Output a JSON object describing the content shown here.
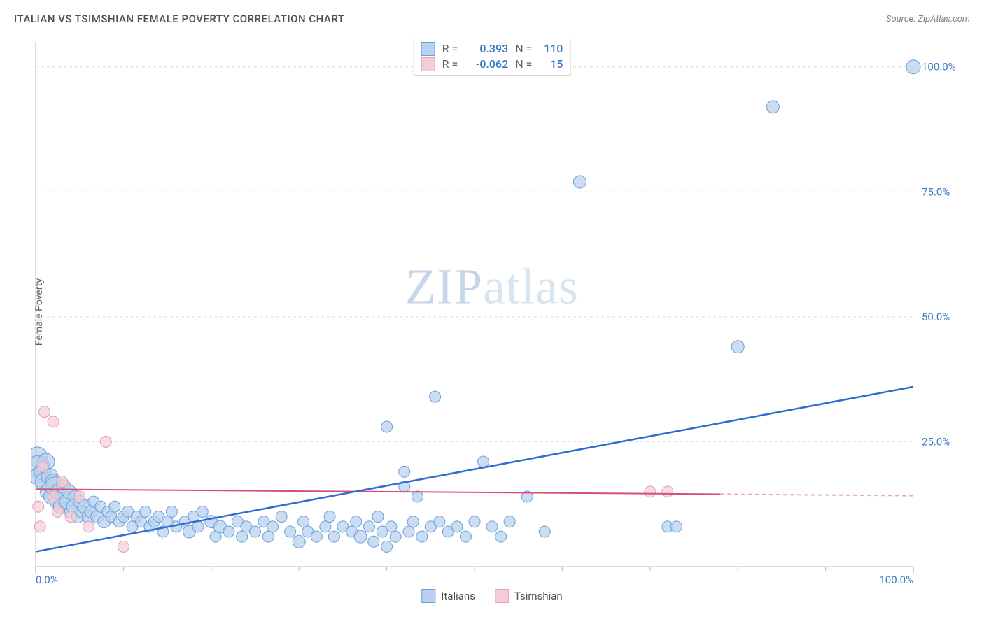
{
  "title": "ITALIAN VS TSIMSHIAN FEMALE POVERTY CORRELATION CHART",
  "source": "Source: ZipAtlas.com",
  "ylabel": "Female Poverty",
  "watermark_bold": "ZIP",
  "watermark_light": "atlas",
  "chart": {
    "type": "scatter",
    "background_color": "#ffffff",
    "grid_color": "#dddddd",
    "axis_color": "#bbbbbb",
    "tick_color": "#bbbbbb",
    "xlim": [
      0,
      100
    ],
    "ylim": [
      0,
      105
    ],
    "x_ticks_major": [
      0,
      100
    ],
    "x_ticks_minor": [
      10,
      20,
      30,
      40,
      50,
      60,
      70,
      80,
      90
    ],
    "y_ticks_major": [
      25,
      50,
      75,
      100
    ],
    "y_tick_labels": [
      "25.0%",
      "50.0%",
      "75.0%",
      "100.0%"
    ],
    "x_tick_labels": [
      "0.0%",
      "100.0%"
    ],
    "tick_label_color": "#3b78c4",
    "tick_label_fontsize": 15,
    "series": [
      {
        "name": "Italians",
        "fill": "#b8d1ee",
        "stroke": "#6a9fd8",
        "line_color": "#2f6bd0",
        "line_width": 2.5,
        "line_dash_end": false,
        "r": 0.393,
        "n": 110,
        "trend": {
          "x1": 0,
          "y1": 3,
          "x2": 100,
          "y2": 36
        },
        "points": [
          {
            "x": 0.2,
            "y": 22,
            "r": 14
          },
          {
            "x": 0.3,
            "y": 20,
            "r": 16
          },
          {
            "x": 0.5,
            "y": 18,
            "r": 14
          },
          {
            "x": 0.8,
            "y": 19,
            "r": 12
          },
          {
            "x": 1.0,
            "y": 17,
            "r": 13
          },
          {
            "x": 1.2,
            "y": 21,
            "r": 12
          },
          {
            "x": 1.4,
            "y": 15,
            "r": 11
          },
          {
            "x": 1.6,
            "y": 18,
            "r": 12
          },
          {
            "x": 1.8,
            "y": 14,
            "r": 11
          },
          {
            "x": 2.0,
            "y": 17,
            "r": 11
          },
          {
            "x": 2.2,
            "y": 16,
            "r": 14
          },
          {
            "x": 2.4,
            "y": 13,
            "r": 10
          },
          {
            "x": 2.6,
            "y": 15,
            "r": 11
          },
          {
            "x": 2.8,
            "y": 12,
            "r": 10
          },
          {
            "x": 3.0,
            "y": 14,
            "r": 10
          },
          {
            "x": 3.2,
            "y": 16,
            "r": 10
          },
          {
            "x": 3.5,
            "y": 13,
            "r": 10
          },
          {
            "x": 3.8,
            "y": 15,
            "r": 10
          },
          {
            "x": 4.0,
            "y": 11,
            "r": 9
          },
          {
            "x": 4.3,
            "y": 12,
            "r": 10
          },
          {
            "x": 4.5,
            "y": 14,
            "r": 9
          },
          {
            "x": 4.8,
            "y": 10,
            "r": 9
          },
          {
            "x": 5.0,
            "y": 13,
            "r": 9
          },
          {
            "x": 5.3,
            "y": 11,
            "r": 9
          },
          {
            "x": 5.6,
            "y": 12,
            "r": 10
          },
          {
            "x": 6.0,
            "y": 10,
            "r": 9
          },
          {
            "x": 6.3,
            "y": 11,
            "r": 9
          },
          {
            "x": 6.6,
            "y": 13,
            "r": 8
          },
          {
            "x": 7.0,
            "y": 10,
            "r": 9
          },
          {
            "x": 7.4,
            "y": 12,
            "r": 8
          },
          {
            "x": 7.8,
            "y": 9,
            "r": 9
          },
          {
            "x": 8.2,
            "y": 11,
            "r": 8
          },
          {
            "x": 8.6,
            "y": 10,
            "r": 8
          },
          {
            "x": 9.0,
            "y": 12,
            "r": 8
          },
          {
            "x": 9.5,
            "y": 9,
            "r": 8
          },
          {
            "x": 10,
            "y": 10,
            "r": 8
          },
          {
            "x": 10.5,
            "y": 11,
            "r": 8
          },
          {
            "x": 11,
            "y": 8,
            "r": 8
          },
          {
            "x": 11.5,
            "y": 10,
            "r": 8
          },
          {
            "x": 12,
            "y": 9,
            "r": 8
          },
          {
            "x": 12.5,
            "y": 11,
            "r": 8
          },
          {
            "x": 13,
            "y": 8,
            "r": 8
          },
          {
            "x": 13.5,
            "y": 9,
            "r": 8
          },
          {
            "x": 14,
            "y": 10,
            "r": 8
          },
          {
            "x": 14.5,
            "y": 7,
            "r": 8
          },
          {
            "x": 15,
            "y": 9,
            "r": 8
          },
          {
            "x": 15.5,
            "y": 11,
            "r": 8
          },
          {
            "x": 16,
            "y": 8,
            "r": 8
          },
          {
            "x": 17,
            "y": 9,
            "r": 8
          },
          {
            "x": 17.5,
            "y": 7,
            "r": 9
          },
          {
            "x": 18,
            "y": 10,
            "r": 8
          },
          {
            "x": 18.5,
            "y": 8,
            "r": 8
          },
          {
            "x": 19,
            "y": 11,
            "r": 8
          },
          {
            "x": 20,
            "y": 9,
            "r": 9
          },
          {
            "x": 20.5,
            "y": 6,
            "r": 8
          },
          {
            "x": 21,
            "y": 8,
            "r": 9
          },
          {
            "x": 22,
            "y": 7,
            "r": 8
          },
          {
            "x": 23,
            "y": 9,
            "r": 8
          },
          {
            "x": 23.5,
            "y": 6,
            "r": 8
          },
          {
            "x": 24,
            "y": 8,
            "r": 8
          },
          {
            "x": 25,
            "y": 7,
            "r": 8
          },
          {
            "x": 26,
            "y": 9,
            "r": 8
          },
          {
            "x": 26.5,
            "y": 6,
            "r": 8
          },
          {
            "x": 27,
            "y": 8,
            "r": 8
          },
          {
            "x": 28,
            "y": 10,
            "r": 8
          },
          {
            "x": 29,
            "y": 7,
            "r": 8
          },
          {
            "x": 30,
            "y": 5,
            "r": 9
          },
          {
            "x": 30.5,
            "y": 9,
            "r": 8
          },
          {
            "x": 31,
            "y": 7,
            "r": 8
          },
          {
            "x": 32,
            "y": 6,
            "r": 8
          },
          {
            "x": 33,
            "y": 8,
            "r": 8
          },
          {
            "x": 33.5,
            "y": 10,
            "r": 8
          },
          {
            "x": 34,
            "y": 6,
            "r": 8
          },
          {
            "x": 35,
            "y": 8,
            "r": 8
          },
          {
            "x": 36,
            "y": 7,
            "r": 8
          },
          {
            "x": 36.5,
            "y": 9,
            "r": 8
          },
          {
            "x": 37,
            "y": 6,
            "r": 9
          },
          {
            "x": 38,
            "y": 8,
            "r": 8
          },
          {
            "x": 38.5,
            "y": 5,
            "r": 8
          },
          {
            "x": 39,
            "y": 10,
            "r": 8
          },
          {
            "x": 39.5,
            "y": 7,
            "r": 8
          },
          {
            "x": 40,
            "y": 4,
            "r": 8
          },
          {
            "x": 40.5,
            "y": 8,
            "r": 8
          },
          {
            "x": 41,
            "y": 6,
            "r": 8
          },
          {
            "x": 42,
            "y": 19,
            "r": 8
          },
          {
            "x": 42,
            "y": 16,
            "r": 8
          },
          {
            "x": 42.5,
            "y": 7,
            "r": 8
          },
          {
            "x": 43,
            "y": 9,
            "r": 8
          },
          {
            "x": 43.5,
            "y": 14,
            "r": 8
          },
          {
            "x": 44,
            "y": 6,
            "r": 8
          },
          {
            "x": 45,
            "y": 8,
            "r": 8
          },
          {
            "x": 45.5,
            "y": 34,
            "r": 8
          },
          {
            "x": 46,
            "y": 9,
            "r": 8
          },
          {
            "x": 47,
            "y": 7,
            "r": 8
          },
          {
            "x": 48,
            "y": 8,
            "r": 8
          },
          {
            "x": 49,
            "y": 6,
            "r": 8
          },
          {
            "x": 50,
            "y": 9,
            "r": 8
          },
          {
            "x": 51,
            "y": 21,
            "r": 8
          },
          {
            "x": 52,
            "y": 8,
            "r": 8
          },
          {
            "x": 53,
            "y": 6,
            "r": 8
          },
          {
            "x": 54,
            "y": 9,
            "r": 8
          },
          {
            "x": 56,
            "y": 14,
            "r": 8
          },
          {
            "x": 58,
            "y": 7,
            "r": 8
          },
          {
            "x": 40,
            "y": 28,
            "r": 8
          },
          {
            "x": 62,
            "y": 77,
            "r": 9
          },
          {
            "x": 72,
            "y": 8,
            "r": 8
          },
          {
            "x": 73,
            "y": 8,
            "r": 8
          },
          {
            "x": 80,
            "y": 44,
            "r": 9
          },
          {
            "x": 84,
            "y": 92,
            "r": 9
          },
          {
            "x": 100,
            "y": 100,
            "r": 10
          }
        ]
      },
      {
        "name": "Tsimshian",
        "fill": "#f4cdd6",
        "stroke": "#e99bb0",
        "line_color": "#d64d78",
        "line_width": 2,
        "line_dash_end": true,
        "r": -0.062,
        "n": 15,
        "trend": {
          "x1": 0,
          "y1": 15.5,
          "x2": 78,
          "y2": 14.5
        },
        "trend_dash": {
          "x1": 78,
          "y1": 14.5,
          "x2": 100,
          "y2": 14.2
        },
        "points": [
          {
            "x": 1,
            "y": 31,
            "r": 8
          },
          {
            "x": 2,
            "y": 14,
            "r": 8
          },
          {
            "x": 0.5,
            "y": 8,
            "r": 8
          },
          {
            "x": 2.5,
            "y": 11,
            "r": 8
          },
          {
            "x": 3,
            "y": 17,
            "r": 8
          },
          {
            "x": 4,
            "y": 10,
            "r": 8
          },
          {
            "x": 5,
            "y": 14,
            "r": 8
          },
          {
            "x": 6,
            "y": 8,
            "r": 8
          },
          {
            "x": 0.8,
            "y": 20,
            "r": 8
          },
          {
            "x": 8,
            "y": 25,
            "r": 8
          },
          {
            "x": 10,
            "y": 4,
            "r": 8
          },
          {
            "x": 2,
            "y": 29,
            "r": 8
          },
          {
            "x": 70,
            "y": 15,
            "r": 8
          },
          {
            "x": 72,
            "y": 15,
            "r": 8
          },
          {
            "x": 0.3,
            "y": 12,
            "r": 8
          }
        ]
      }
    ],
    "legend_top": {
      "r_label": "R =",
      "n_label": "N =",
      "label_color": "#606060",
      "value_color": "#3b78c4"
    },
    "legend_bottom": {
      "label_color": "#505050"
    }
  }
}
